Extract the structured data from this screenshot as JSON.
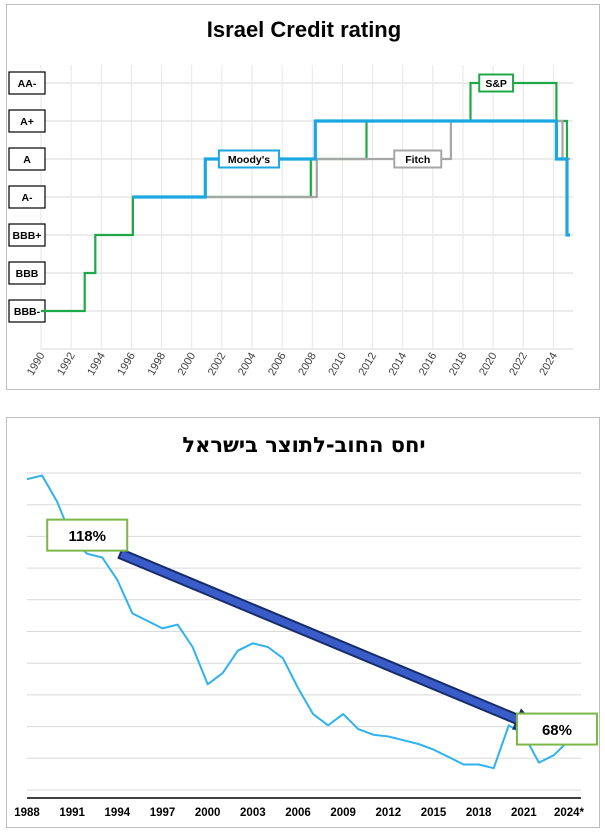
{
  "chart_data": [
    {
      "type": "line",
      "title": "Israel Credit rating",
      "xlabel": "",
      "ylabel": "",
      "x_ticks": [
        "1990",
        "1992",
        "1994",
        "1996",
        "1998",
        "2000",
        "2002",
        "2004",
        "2006",
        "2008",
        "2010",
        "2012",
        "2014",
        "2016",
        "2018",
        "2020",
        "2022",
        "2024"
      ],
      "xlim": [
        1990,
        2025.3
      ],
      "y_categories": [
        "BBB-",
        "BBB",
        "BBB+",
        "A-",
        "A",
        "A+",
        "AA-"
      ],
      "grid": true,
      "series": [
        {
          "name": "S&P",
          "color": "#1fa848",
          "points": [
            [
              1990,
              0
            ],
            [
              1992.9,
              0
            ],
            [
              1992.9,
              1
            ],
            [
              1993.6,
              1
            ],
            [
              1993.6,
              2
            ],
            [
              1996.1,
              2
            ],
            [
              1996.1,
              3
            ],
            [
              2007.9,
              3
            ],
            [
              2007.9,
              4
            ],
            [
              2011.6,
              4
            ],
            [
              2011.6,
              5
            ],
            [
              2018.5,
              5
            ],
            [
              2018.5,
              6
            ],
            [
              2024.2,
              6
            ],
            [
              2024.2,
              5
            ],
            [
              2024.9,
              5
            ],
            [
              2024.9,
              4
            ]
          ]
        },
        {
          "name": "Fitch",
          "color": "#a6a6a6",
          "points": [
            [
              1996.1,
              3
            ],
            [
              2008.3,
              3
            ],
            [
              2008.3,
              4
            ],
            [
              2017.2,
              4
            ],
            [
              2017.2,
              5
            ],
            [
              2024.6,
              5
            ],
            [
              2024.6,
              4
            ],
            [
              2025.1,
              4
            ]
          ]
        },
        {
          "name": "Moody's",
          "color": "#1ba7e1",
          "points": [
            [
              1996.1,
              3
            ],
            [
              2000.9,
              3
            ],
            [
              2000.9,
              4
            ],
            [
              2008.2,
              4
            ],
            [
              2008.2,
              5
            ],
            [
              2024.2,
              5
            ],
            [
              2024.2,
              4
            ],
            [
              2024.9,
              4
            ],
            [
              2024.9,
              2
            ],
            [
              2025.1,
              2
            ]
          ]
        }
      ],
      "labels": [
        {
          "text": "S&P",
          "x": 2020.2,
          "y": 6
        },
        {
          "text": "Moody's",
          "x": 2003.8,
          "y": 4
        },
        {
          "text": "Fitch",
          "x": 2015.0,
          "y": 4
        }
      ]
    },
    {
      "type": "line",
      "title": "יחס החוב-לתוצר בישראל",
      "xlabel": "",
      "ylabel": "",
      "x_ticks": [
        "1988",
        "1991",
        "1994",
        "1997",
        "2000",
        "2003",
        "2006",
        "2009",
        "2012",
        "2015",
        "2018",
        "2021",
        "2024*"
      ],
      "xlim": [
        1988,
        2024
      ],
      "ylim": [
        55,
        140
      ],
      "grid": true,
      "series": [
        {
          "name": "",
          "color": "#2fb2ee",
          "x": [
            1988,
            1989,
            1990,
            1991,
            1992,
            1993,
            1994,
            1995,
            1996,
            1997,
            1998,
            1999,
            2000,
            2001,
            2002,
            2003,
            2004,
            2005,
            2006,
            2007,
            2008,
            2009,
            2010,
            2011,
            2012,
            2013,
            2014,
            2015,
            2016,
            2017,
            2018,
            2019,
            2020,
            2021,
            2022,
            2023,
            2024
          ],
          "values": [
            137,
            138,
            131,
            121,
            117,
            116,
            110,
            101,
            99,
            97,
            98,
            92,
            82,
            85,
            91,
            93,
            92,
            89,
            81,
            74,
            71,
            74,
            70,
            68.5,
            68,
            67,
            66,
            64.5,
            62.5,
            60.5,
            60.5,
            59.5,
            71,
            68.5,
            61,
            63,
            67
          ]
        }
      ],
      "annotations": [
        {
          "text": "118%",
          "x": 1992,
          "y": 122
        },
        {
          "text": "68%",
          "x": 2023.2,
          "y": 70
        }
      ],
      "trend_arrow": {
        "from": [
          1994.2,
          117
        ],
        "to": [
          2021.8,
          70.5
        ]
      }
    }
  ]
}
